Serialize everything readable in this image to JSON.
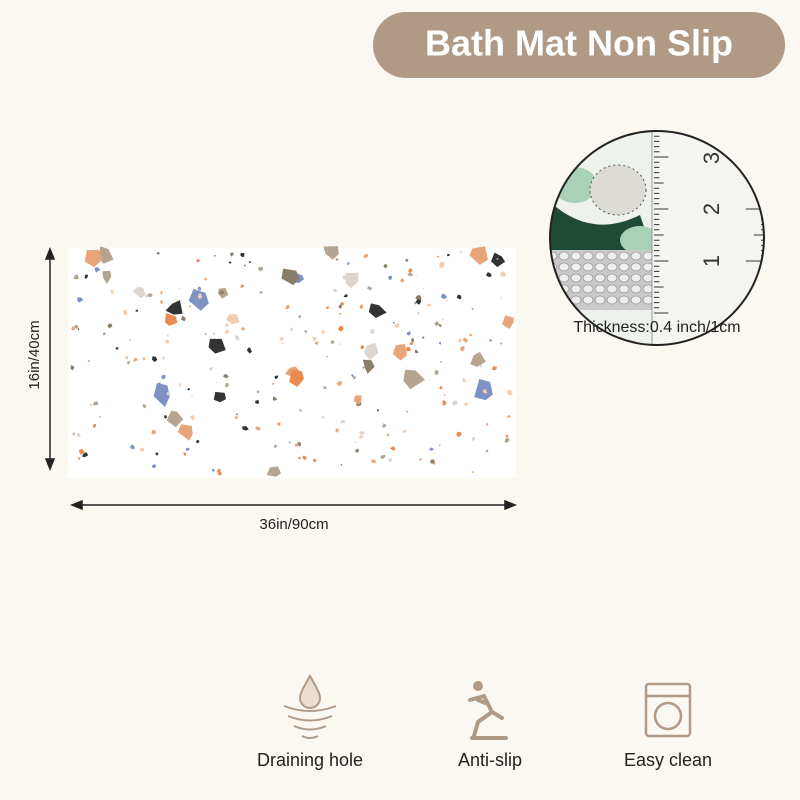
{
  "header": {
    "title": "Bath Mat Non Slip"
  },
  "dimensions": {
    "height_label": "16in/40cm",
    "width_label": "36in/90cm"
  },
  "detail": {
    "ruler_labels": [
      "3",
      "2",
      "1"
    ],
    "caption": "Thickness:0.4 inch/1cm"
  },
  "features": [
    {
      "label": "Draining hole"
    },
    {
      "label": "Anti-slip"
    },
    {
      "label": "Easy clean"
    }
  ]
}
